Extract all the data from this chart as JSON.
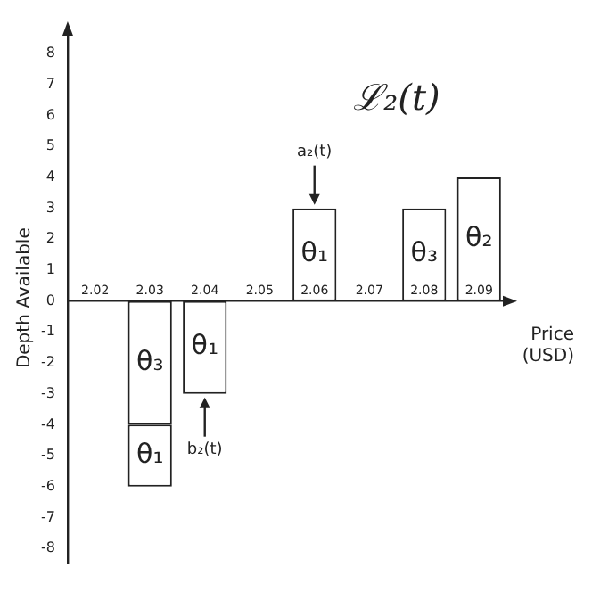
{
  "chart_data": {
    "type": "bar",
    "title": "ℒ₂(t)",
    "xlabel": "Price (USD)",
    "ylabel": "Depth Available",
    "categories": [
      "2.02",
      "2.03",
      "2.04",
      "2.05",
      "2.06",
      "2.07",
      "2.08",
      "2.09"
    ],
    "stacked": true,
    "series": [
      {
        "color": "#ffffff",
        "values": [
          null,
          -4,
          -3,
          null,
          3,
          null,
          3,
          4
        ],
        "value_labels": [
          null,
          "θ₃",
          "θ₁",
          null,
          "θ₁",
          null,
          "θ₃",
          "θ₂"
        ]
      },
      {
        "color": "#ffffff",
        "values": [
          null,
          -2,
          null,
          null,
          null,
          null,
          null,
          null
        ],
        "value_labels": [
          null,
          "θ₁",
          null,
          null,
          null,
          null,
          null,
          null
        ]
      }
    ],
    "ylim": [
      -8.5,
      8.7
    ],
    "yticks": [
      -8,
      -7,
      -6,
      -5,
      -4,
      -3,
      -2,
      -1,
      0,
      1,
      2,
      3,
      4,
      5,
      6,
      7,
      8
    ],
    "annotations": [
      {
        "text": "a₂(t)",
        "x": "2.06",
        "y": 3
      },
      {
        "text": "b₂(t)",
        "x": "2.04",
        "y": -3
      }
    ],
    "grid": false,
    "legend": false
  }
}
